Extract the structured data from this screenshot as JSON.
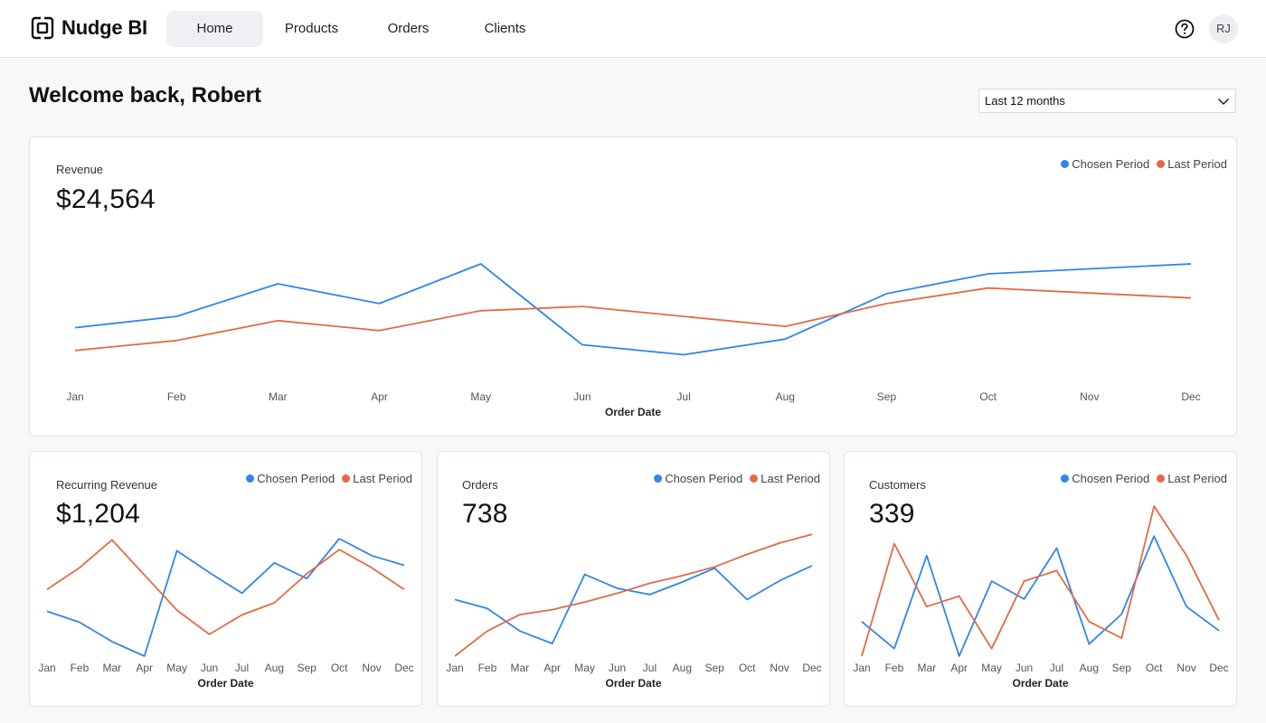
{
  "app": {
    "name": "Nudge BI"
  },
  "nav": {
    "items": [
      {
        "label": "Home",
        "active": true
      },
      {
        "label": "Products",
        "active": false
      },
      {
        "label": "Orders",
        "active": false
      },
      {
        "label": "Clients",
        "active": false
      }
    ]
  },
  "header": {
    "help_icon": "question-circle-icon",
    "avatar_initials": "RJ"
  },
  "page": {
    "welcome": "Welcome back, Robert",
    "period_select": {
      "value": "Last 12 months",
      "icon": "chevron-down-icon"
    }
  },
  "colors": {
    "chosen": "#2f86eb",
    "last": "#e36a46",
    "background": "#f7f8fa"
  },
  "legend": {
    "chosen": "Chosen Period",
    "last": "Last Period"
  },
  "cards": {
    "revenue": {
      "title": "Revenue",
      "value": "$24,564"
    },
    "recurring": {
      "title": "Recurring Revenue",
      "value": "$1,204"
    },
    "orders": {
      "title": "Orders",
      "value": "738"
    },
    "customers": {
      "title": "Customers",
      "value": "339"
    }
  },
  "chart_data": [
    {
      "id": "revenue",
      "type": "line",
      "categories": [
        "Jan",
        "Feb",
        "Mar",
        "Apr",
        "May",
        "Jun",
        "Jul",
        "Aug",
        "Sep",
        "Oct",
        "Nov",
        "Dec"
      ],
      "xlabel": "Order Date",
      "grid": false,
      "legend_position": "top-right",
      "ylim": [
        0,
        100
      ],
      "series": [
        {
          "name": "Chosen Period",
          "values": [
            41,
            49,
            72,
            58,
            86,
            29,
            22,
            33,
            65,
            79,
            null,
            86
          ]
        },
        {
          "name": "Last Period",
          "values": [
            25,
            32,
            46,
            39,
            53,
            56,
            49,
            42,
            58,
            69,
            null,
            62
          ]
        }
      ]
    },
    {
      "id": "recurring",
      "type": "line",
      "categories": [
        "Jan",
        "Feb",
        "Mar",
        "Apr",
        "May",
        "Jun",
        "Jul",
        "Aug",
        "Sep",
        "Oct",
        "Nov",
        "Dec"
      ],
      "xlabel": "Order Date",
      "grid": false,
      "legend_position": "top-right",
      "ylim": [
        0,
        100
      ],
      "series": [
        {
          "name": "Chosen Period",
          "values": [
            37,
            28,
            12,
            0,
            87,
            69,
            52,
            77,
            64,
            97,
            83,
            75
          ]
        },
        {
          "name": "Last Period",
          "values": [
            55,
            73,
            96,
            67,
            38,
            18,
            34,
            44,
            68,
            88,
            73,
            55
          ]
        }
      ]
    },
    {
      "id": "orders",
      "type": "line",
      "categories": [
        "Jan",
        "Feb",
        "Mar",
        "Apr",
        "May",
        "Jun",
        "Jul",
        "Aug",
        "Sep",
        "Oct",
        "Nov",
        "Dec"
      ],
      "xlabel": "Order Date",
      "grid": false,
      "legend_position": "top-right",
      "ylim": [
        0,
        100
      ],
      "series": [
        {
          "name": "Chosen Period",
          "values": [
            45,
            38,
            20,
            10,
            65,
            54,
            49,
            59,
            70,
            45,
            60,
            72
          ]
        },
        {
          "name": "Last Period",
          "values": [
            0,
            20,
            33,
            37,
            43,
            50,
            58,
            64,
            71,
            81,
            90,
            97
          ]
        }
      ]
    },
    {
      "id": "customers",
      "type": "line",
      "categories": [
        "Jan",
        "Feb",
        "Mar",
        "Apr",
        "May",
        "Jun",
        "Jul",
        "Aug",
        "Sep",
        "Oct",
        "Nov",
        "Dec"
      ],
      "xlabel": "Order Date",
      "grid": false,
      "legend_position": "top-right",
      "ylim": [
        0,
        100
      ],
      "series": [
        {
          "name": "Chosen Period",
          "values": [
            23,
            5,
            67,
            0,
            50,
            38,
            72,
            8,
            28,
            80,
            33,
            17
          ]
        },
        {
          "name": "Last Period",
          "values": [
            0,
            75,
            33,
            40,
            5,
            50,
            57,
            23,
            12,
            100,
            67,
            24
          ]
        }
      ]
    }
  ]
}
